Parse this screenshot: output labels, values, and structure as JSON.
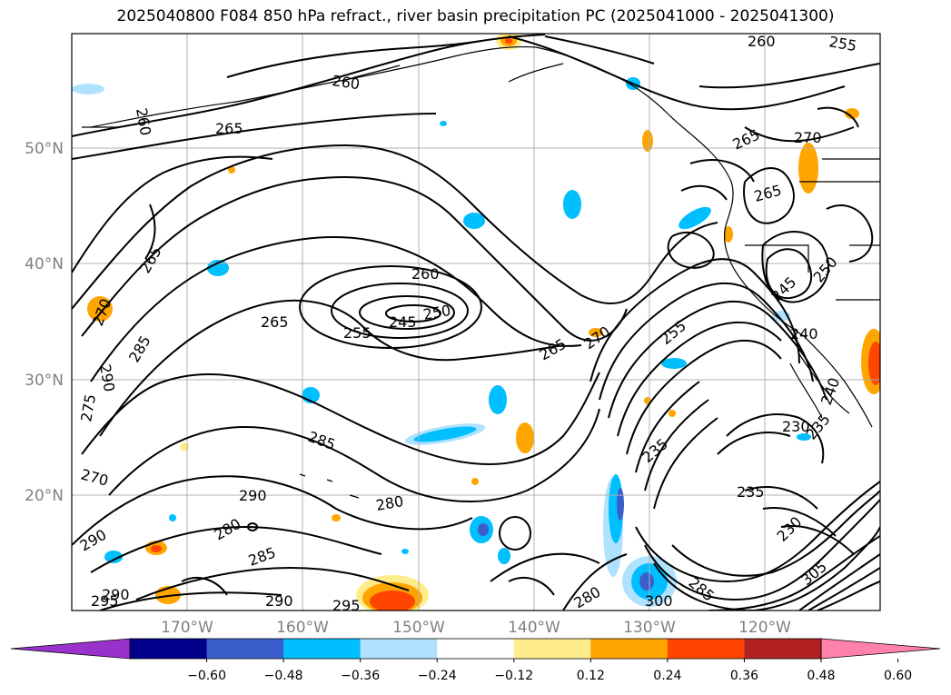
{
  "title": "2025040800 F084 850 hPa refract., river basin precipitation PC (2025041000 - 2025041300)",
  "lat_labels": [
    "50°N",
    "40°N",
    "30°N",
    "20°N"
  ],
  "lon_labels": [
    "170°W",
    "160°W",
    "150°W",
    "140°W",
    "130°W",
    "120°W"
  ],
  "contour_labels": [
    "260",
    "265",
    "255",
    "265",
    "260",
    "270",
    "265",
    "265",
    "260",
    "245",
    "250",
    "245",
    "265",
    "260",
    "255",
    "265",
    "270",
    "255",
    "240",
    "250",
    "270",
    "285",
    "290",
    "275",
    "270",
    "285",
    "290",
    "280",
    "290",
    "280",
    "285",
    "290",
    "295",
    "290",
    "295",
    "280",
    "300",
    "285",
    "235",
    "235",
    "230",
    "235",
    "230",
    "305",
    "240"
  ],
  "colorbar": {
    "ticks": [
      "−0.60",
      "−0.48",
      "−0.36",
      "−0.24",
      "−0.12",
      "0.12",
      "0.24",
      "0.36",
      "0.48",
      "0.60"
    ],
    "colors": [
      "#9932cc",
      "#00008b",
      "#3a5fcd",
      "#00bfff",
      "#b0e2ff",
      "#ffffff",
      "#ffec8b",
      "#ffa500",
      "#ff4500",
      "#b22222",
      "#ff82ab"
    ]
  }
}
